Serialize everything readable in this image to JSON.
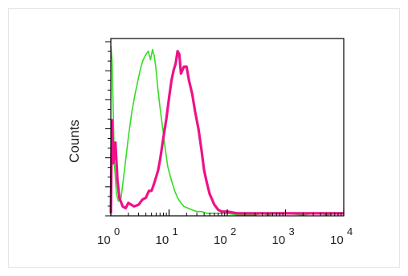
{
  "chart_data": {
    "type": "line",
    "title": "",
    "xlabel": "",
    "ylabel": "Counts",
    "x_scale": "log",
    "xlim": [
      1,
      10000
    ],
    "ylim": [
      0,
      1
    ],
    "grid": false,
    "x_ticks": [
      {
        "base": "10",
        "exp": "0"
      },
      {
        "base": "10",
        "exp": "1"
      },
      {
        "base": "10",
        "exp": "2"
      },
      {
        "base": "10",
        "exp": "3"
      },
      {
        "base": "10",
        "exp": "4"
      }
    ],
    "series": [
      {
        "color": "#33dd22",
        "width": 1.6,
        "x": [
          1,
          1.05,
          1.1,
          1.15,
          1.25,
          1.35,
          1.5,
          1.7,
          2.0,
          2.3,
          2.6,
          3.0,
          3.3,
          3.6,
          4.0,
          4.4,
          4.8,
          5.2,
          5.6,
          6.0,
          6.4,
          7.0,
          7.8,
          8.6,
          9.5,
          11,
          12.5,
          14,
          16,
          18,
          21,
          25,
          30,
          36,
          45,
          60,
          80,
          100,
          150,
          200,
          300,
          400,
          500,
          700,
          1000,
          2000,
          3000,
          4000,
          5000,
          7000,
          10000
        ],
        "y": [
          0.98,
          0.9,
          0.6,
          0.3,
          0.12,
          0.08,
          0.1,
          0.25,
          0.45,
          0.6,
          0.7,
          0.8,
          0.86,
          0.9,
          0.93,
          0.95,
          0.9,
          0.96,
          0.92,
          0.84,
          0.74,
          0.62,
          0.5,
          0.38,
          0.28,
          0.2,
          0.14,
          0.1,
          0.07,
          0.05,
          0.04,
          0.03,
          0.02,
          0.02,
          0.01,
          0.01,
          0.01,
          0.01,
          0.0,
          0.0,
          0.0,
          0.01,
          0.0,
          0.01,
          0.01,
          0.0,
          0.01,
          0.01,
          0.0,
          0.01,
          0.01
        ]
      },
      {
        "color": "#ee1188",
        "width": 3.2,
        "x": [
          1,
          1.05,
          1.1,
          1.2,
          1.3,
          1.4,
          1.6,
          1.8,
          2.0,
          2.5,
          3.0,
          3.5,
          4.0,
          4.5,
          5.0,
          5.5,
          6.0,
          6.5,
          7.0,
          8.0,
          9.0,
          10,
          11,
          12,
          13,
          14,
          15,
          16,
          18,
          20,
          22,
          25,
          28,
          32,
          36,
          40,
          45,
          50,
          60,
          70,
          80,
          100,
          150,
          200,
          300,
          500,
          1000,
          2000,
          3000,
          5000,
          7000,
          10000
        ],
        "y": [
          0.01,
          0.55,
          0.3,
          0.42,
          0.2,
          0.1,
          0.05,
          0.04,
          0.07,
          0.05,
          0.06,
          0.09,
          0.1,
          0.14,
          0.14,
          0.18,
          0.22,
          0.26,
          0.32,
          0.45,
          0.56,
          0.68,
          0.78,
          0.84,
          0.88,
          0.95,
          0.93,
          0.82,
          0.86,
          0.86,
          0.78,
          0.7,
          0.6,
          0.5,
          0.38,
          0.26,
          0.18,
          0.12,
          0.06,
          0.03,
          0.02,
          0.02,
          0.01,
          0.01,
          0.01,
          0.01,
          0.01,
          0.01,
          0.01,
          0.01,
          0.01,
          0.01
        ]
      }
    ]
  }
}
